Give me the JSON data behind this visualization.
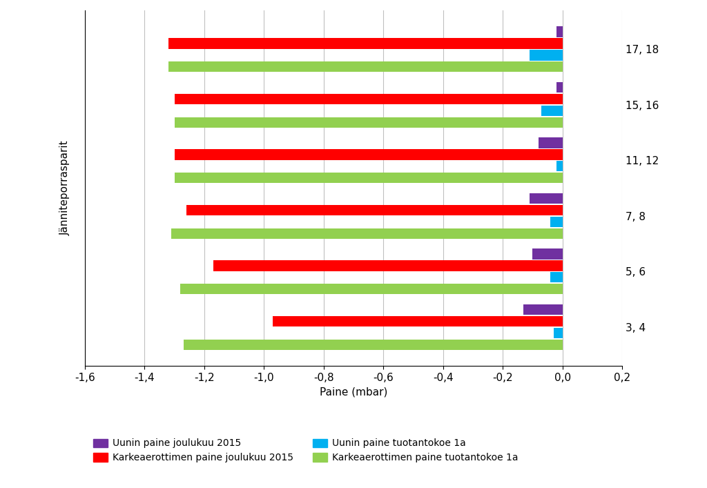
{
  "categories": [
    "3, 4",
    "5, 6",
    "7, 8",
    "11, 12",
    "15, 16",
    "17, 18"
  ],
  "series": {
    "uunin_joulukuu": {
      "values": [
        -0.13,
        -0.1,
        -0.11,
        -0.08,
        -0.02,
        -0.02
      ],
      "color": "#7030A0",
      "label": "Uunin paine joulukuu 2015"
    },
    "karkea_joulukuu": {
      "values": [
        -0.97,
        -1.17,
        -1.26,
        -1.3,
        -1.3,
        -1.32
      ],
      "color": "#FF0000",
      "label": "Karkeaerottimen paine joulukuu 2015"
    },
    "uunin_tuotanto": {
      "values": [
        -0.03,
        -0.04,
        -0.04,
        -0.02,
        -0.07,
        -0.11
      ],
      "color": "#00B0F0",
      "label": "Uunin paine tuotantokoe 1a"
    },
    "karkea_tuotanto": {
      "values": [
        -1.27,
        -1.28,
        -1.31,
        -1.3,
        -1.3,
        -1.32
      ],
      "color": "#92D050",
      "label": "Karkeaerottimen paine tuotantokoe 1a"
    }
  },
  "series_order": [
    "karkea_tuotanto",
    "uunin_tuotanto",
    "karkea_joulukuu",
    "uunin_joulukuu"
  ],
  "xlim": [
    -1.6,
    0.2
  ],
  "xticks": [
    -1.6,
    -1.4,
    -1.2,
    -1.0,
    -0.8,
    -0.6,
    -0.4,
    -0.2,
    0.0,
    0.2
  ],
  "xlabel": "Paine (mbar)",
  "ylabel": "Jänniteporrasparit",
  "background_color": "#FFFFFF",
  "grid_color": "#C0C0C0",
  "bar_height": 0.19,
  "bar_gap": 0.02
}
